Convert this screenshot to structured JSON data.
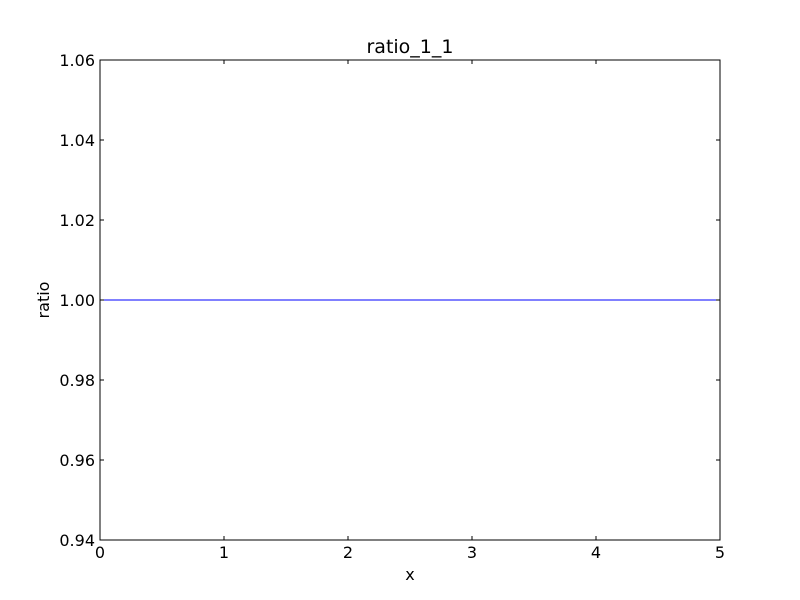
{
  "chart_data": {
    "type": "line",
    "title": "ratio_1_1",
    "xlabel": "x",
    "ylabel": "ratio",
    "xlim": [
      0,
      5
    ],
    "ylim": [
      0.94,
      1.06
    ],
    "xticks": [
      0,
      1,
      2,
      3,
      4,
      5
    ],
    "xtick_labels": [
      "0",
      "1",
      "2",
      "3",
      "4",
      "5"
    ],
    "yticks": [
      0.94,
      0.96,
      0.98,
      1.0,
      1.02,
      1.04,
      1.06
    ],
    "ytick_labels": [
      "0.94",
      "0.96",
      "0.98",
      "1.00",
      "1.02",
      "1.04",
      "1.06"
    ],
    "grid": false,
    "series": [
      {
        "color": "#0000ff",
        "x": [
          0,
          5
        ],
        "y": [
          1.0,
          1.0
        ]
      }
    ]
  }
}
